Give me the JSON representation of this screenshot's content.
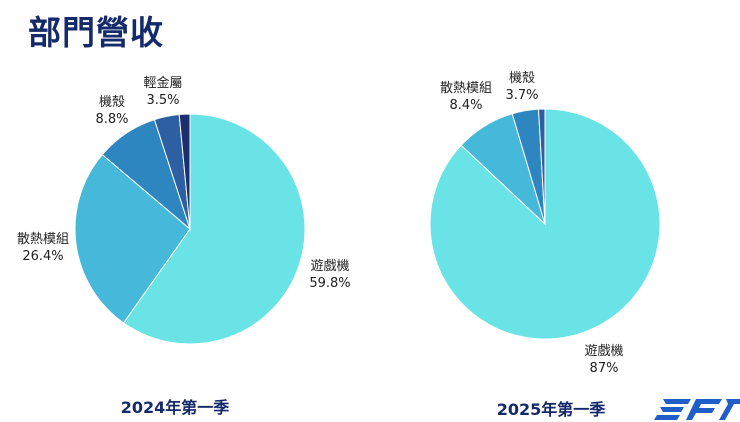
{
  "page": {
    "title": "部門營收"
  },
  "colors": {
    "title": "#152a6b",
    "slices": [
      "#6ae3e6",
      "#46b8da",
      "#2e86c1",
      "#2d5fa3",
      "#1c2f6e"
    ],
    "logo": "#1f5ec9"
  },
  "logo": {
    "icon": "company-logo-icon"
  },
  "chart_data": [
    {
      "type": "pie",
      "caption": "2024年第一季",
      "slices": [
        {
          "label": "遊戲機",
          "value": 59.8,
          "display": "59.8%"
        },
        {
          "label": "散熱模組",
          "value": 26.4,
          "display": "26.4%"
        },
        {
          "label": "機殼",
          "value": 8.8,
          "display": "8.8%"
        },
        {
          "label": "輕金屬",
          "value": 3.5,
          "display": "3.5%"
        },
        {
          "label": "",
          "value": 1.5,
          "display": ""
        }
      ]
    },
    {
      "type": "pie",
      "caption": "2025年第一季",
      "slices": [
        {
          "label": "遊戲機",
          "value": 87,
          "display": "87%"
        },
        {
          "label": "散熱模組",
          "value": 8.4,
          "display": "8.4%"
        },
        {
          "label": "機殼",
          "value": 3.7,
          "display": "3.7%"
        },
        {
          "label": "",
          "value": 0.9,
          "display": ""
        }
      ]
    }
  ]
}
